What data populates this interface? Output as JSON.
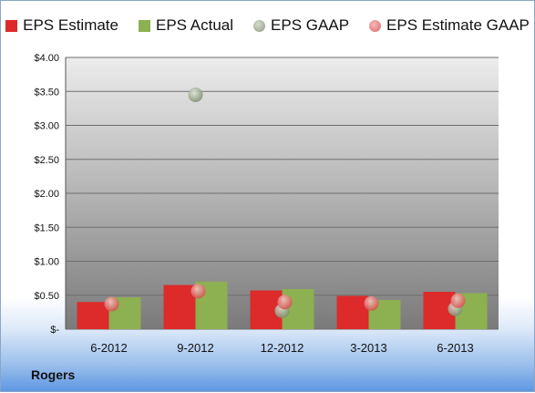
{
  "chart_data": {
    "type": "bar",
    "categories": [
      "6-2012",
      "9-2012",
      "12-2012",
      "3-2013",
      "6-2013"
    ],
    "series": [
      {
        "name": "EPS Estimate",
        "kind": "bar",
        "color": "#dd2a2a",
        "values": [
          0.4,
          0.65,
          0.57,
          0.49,
          0.55
        ]
      },
      {
        "name": "EPS Actual",
        "kind": "bar",
        "color": "#8db050",
        "values": [
          0.47,
          0.7,
          0.59,
          0.43,
          0.53
        ]
      },
      {
        "name": "EPS GAAP",
        "kind": "marker",
        "color": "#8e9c82",
        "values": [
          null,
          3.45,
          0.27,
          null,
          0.3
        ]
      },
      {
        "name": "EPS Estimate GAAP",
        "kind": "marker",
        "color": "#e06868",
        "values": [
          0.37,
          0.56,
          0.4,
          0.38,
          0.42
        ]
      }
    ],
    "ylim": [
      0,
      4
    ],
    "yticks": [
      0,
      0.5,
      1,
      1.5,
      2,
      2.5,
      3,
      3.5,
      4
    ],
    "ytick_labels": [
      "$-",
      "$0.50",
      "$1.00",
      "$1.50",
      "$2.00",
      "$2.50",
      "$3.00",
      "$3.50",
      "$4.00"
    ],
    "grid": true,
    "legend_position": "top",
    "company": "Rogers"
  }
}
